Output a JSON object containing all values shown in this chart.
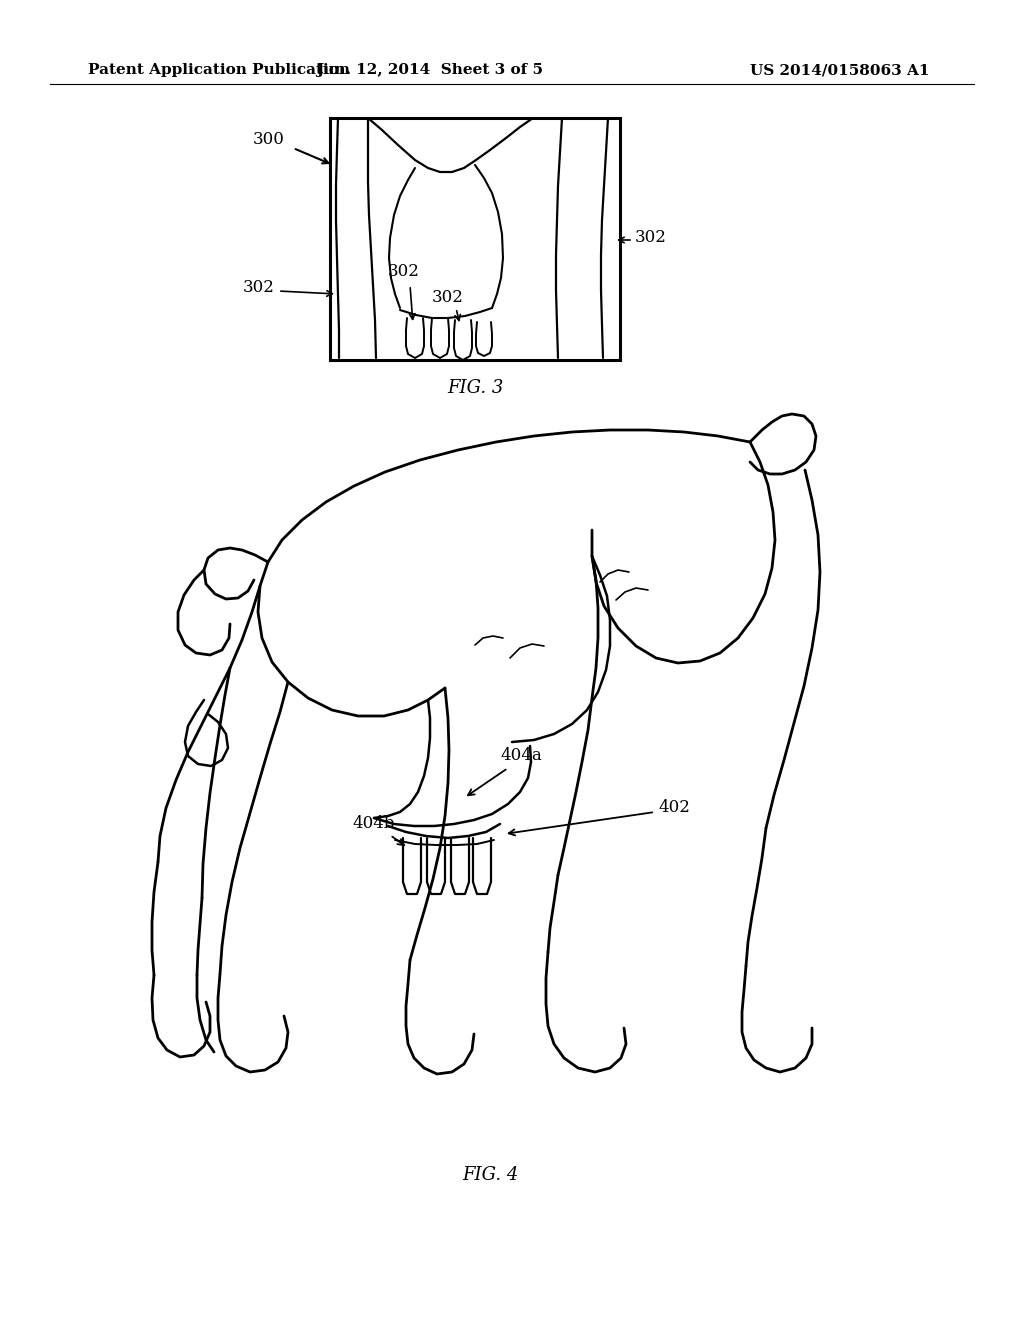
{
  "background_color": "#ffffff",
  "header_left": "Patent Application Publication",
  "header_center": "Jun. 12, 2014  Sheet 3 of 5",
  "header_right": "US 2014/0158063 A1",
  "fig3_caption": "FIG. 3",
  "fig4_caption": "FIG. 4",
  "label_300": "300",
  "label_302": "302",
  "label_402": "402",
  "label_404a": "404a",
  "label_404b": "404b"
}
